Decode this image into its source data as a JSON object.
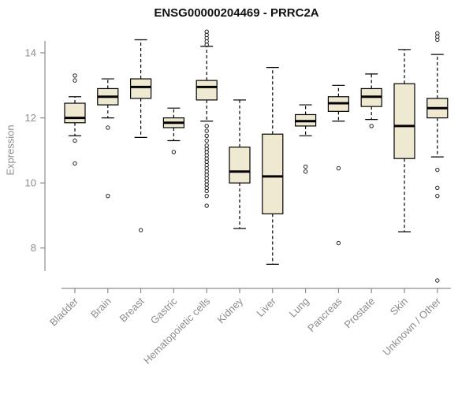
{
  "chart_data": {
    "type": "boxplot",
    "title": "ENSG00000204469 - PRRC2A",
    "ylabel": "Expression",
    "ylim": [
      7.0,
      14.8
    ],
    "yticks": [
      8,
      10,
      12,
      14
    ],
    "grid": false,
    "legend": "none",
    "box_fill": "#F0E9D2",
    "box_stroke": "#000000",
    "axis_color": "#8C8C8C",
    "outlier_color": "#222222",
    "categories": [
      "Bladder",
      "Brain",
      "Breast",
      "Gastric",
      "Hematopoietic cells",
      "Kidney",
      "Liver",
      "Lung",
      "Pancreas",
      "Prostate",
      "Skin",
      "Unknown / Other"
    ],
    "boxes": [
      {
        "category": "Bladder",
        "low": 11.45,
        "q1": 11.85,
        "median": 12.0,
        "q3": 12.45,
        "high": 12.65,
        "outliers": [
          13.3,
          13.15,
          11.3,
          10.6
        ]
      },
      {
        "category": "Brain",
        "low": 12.0,
        "q1": 12.4,
        "median": 12.65,
        "q3": 12.9,
        "high": 13.2,
        "outliers": [
          11.7,
          9.6
        ]
      },
      {
        "category": "Breast",
        "low": 11.4,
        "q1": 12.6,
        "median": 12.95,
        "q3": 13.2,
        "high": 14.4,
        "outliers": [
          8.55
        ]
      },
      {
        "category": "Gastric",
        "low": 11.3,
        "q1": 11.7,
        "median": 11.85,
        "q3": 12.0,
        "high": 12.3,
        "outliers": [
          10.95
        ]
      },
      {
        "category": "Hematopoietic cells",
        "low": 11.9,
        "q1": 12.55,
        "median": 12.95,
        "q3": 13.15,
        "high": 14.2,
        "outliers": [
          14.65,
          14.55,
          14.45,
          14.35,
          14.25,
          11.75,
          11.6,
          11.45,
          11.3,
          11.15,
          11.05,
          10.95,
          10.85,
          10.75,
          10.65,
          10.55,
          10.45,
          10.35,
          10.25,
          10.15,
          10.05,
          9.95,
          9.85,
          9.75,
          9.6,
          9.3
        ]
      },
      {
        "category": "Kidney",
        "low": 8.6,
        "q1": 10.0,
        "median": 10.35,
        "q3": 11.1,
        "high": 12.55,
        "outliers": []
      },
      {
        "category": "Liver",
        "low": 7.5,
        "q1": 9.05,
        "median": 10.2,
        "q3": 11.5,
        "high": 13.55,
        "outliers": []
      },
      {
        "category": "Lung",
        "low": 11.45,
        "q1": 11.75,
        "median": 11.9,
        "q3": 12.1,
        "high": 12.4,
        "outliers": [
          10.5,
          10.35
        ]
      },
      {
        "category": "Pancreas",
        "low": 11.9,
        "q1": 12.2,
        "median": 12.45,
        "q3": 12.65,
        "high": 13.0,
        "outliers": [
          10.45,
          8.15
        ]
      },
      {
        "category": "Prostate",
        "low": 11.95,
        "q1": 12.35,
        "median": 12.65,
        "q3": 12.9,
        "high": 13.35,
        "outliers": [
          11.75
        ]
      },
      {
        "category": "Skin",
        "low": 8.5,
        "q1": 10.75,
        "median": 11.75,
        "q3": 13.05,
        "high": 14.1,
        "outliers": []
      },
      {
        "category": "Unknown / Other",
        "low": 10.8,
        "q1": 12.0,
        "median": 12.3,
        "q3": 12.6,
        "high": 13.95,
        "outliers": [
          14.6,
          14.5,
          14.4,
          10.4,
          9.85,
          9.6,
          7.0
        ]
      }
    ]
  }
}
